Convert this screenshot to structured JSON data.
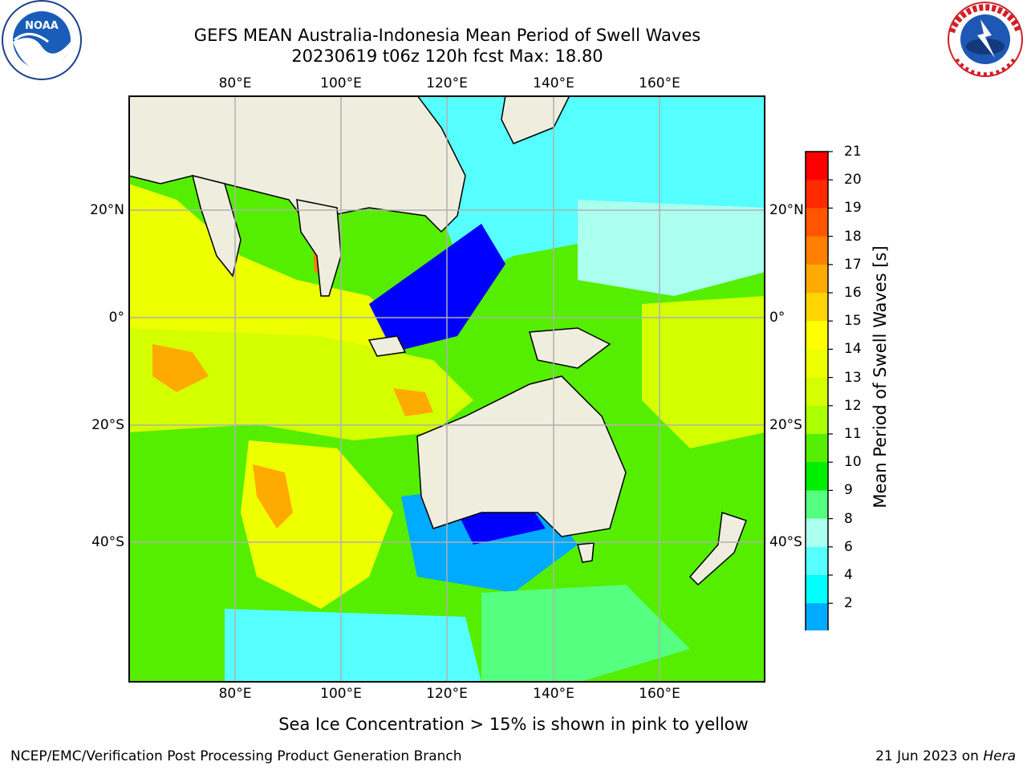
{
  "title": {
    "line1": "GEFS MEAN Australia-Indonesia Mean Period of Swell Waves",
    "line2": "20230619 t06z 120h fcst   Max: 18.80"
  },
  "map": {
    "lon_ticks_top": [
      "80°E",
      "100°E",
      "120°E",
      "140°E",
      "160°E"
    ],
    "lon_ticks_bottom": [
      "80°E",
      "100°E",
      "120°E",
      "140°E",
      "160°E"
    ],
    "lat_ticks_left": [
      "20°N",
      "0°",
      "20°S",
      "40°S"
    ],
    "lat_ticks_right": [
      "20°N",
      "0°",
      "20°S",
      "40°S"
    ],
    "land_color": "#efedde",
    "grid_color": "#b0b0b0"
  },
  "colorbar": {
    "title": "Mean Period of Swell Waves [s]",
    "labels": [
      "21",
      "20",
      "19",
      "18",
      "17",
      "16",
      "15",
      "14",
      "13",
      "12",
      "11",
      "10",
      "9",
      "8",
      "6",
      "4",
      "2"
    ],
    "colors_top_to_bottom": [
      "#ff0000",
      "#ff2a00",
      "#ff5500",
      "#ff7f00",
      "#ffaa00",
      "#ffd400",
      "#ffff00",
      "#eeff00",
      "#d4ff00",
      "#aaff00",
      "#55ee00",
      "#00ee00",
      "#55ff7f",
      "#aaffee",
      "#55ffff",
      "#00ffff",
      "#00aaff",
      "#0055ff"
    ],
    "extend_color": "#0000ff"
  },
  "note": "Sea Ice Concentration > 15% is shown in pink to yellow",
  "footer": {
    "credit": "NCEP/EMC/Verification Post Processing Product Generation Branch",
    "date": "21 Jun 2023 on",
    "host": "Hera"
  },
  "logos": {
    "noaa_text": "NOAA",
    "nws_text": "NATIONAL WEATHER SERVICE"
  }
}
